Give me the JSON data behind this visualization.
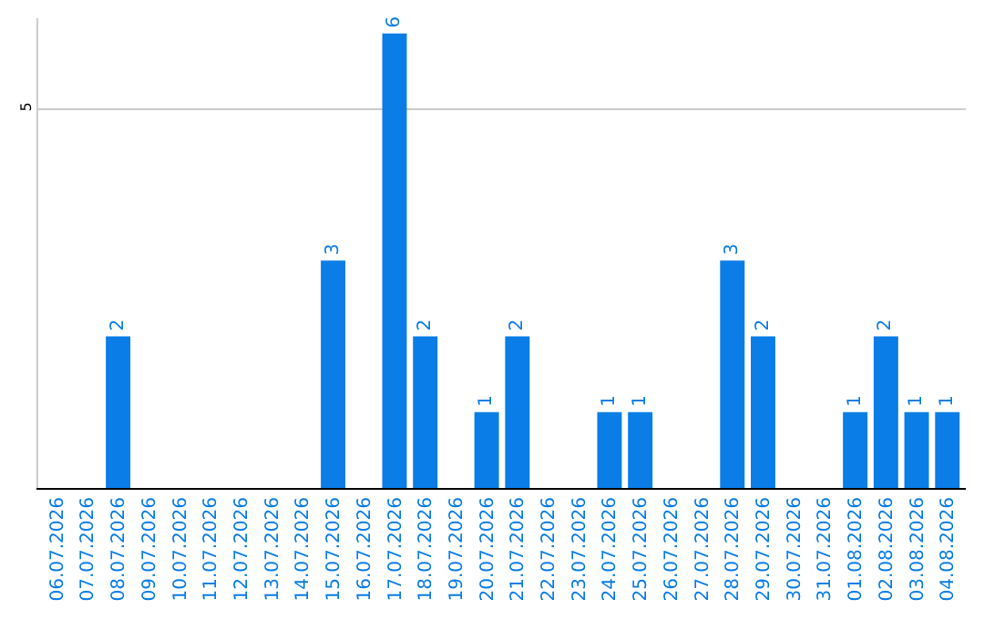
{
  "chart_data": {
    "type": "bar",
    "categories": [
      "06.07.2026",
      "07.07.2026",
      "08.07.2026",
      "09.07.2026",
      "10.07.2026",
      "11.07.2026",
      "12.07.2026",
      "13.07.2026",
      "14.07.2026",
      "15.07.2026",
      "16.07.2026",
      "17.07.2026",
      "18.07.2026",
      "19.07.2026",
      "20.07.2026",
      "21.07.2026",
      "22.07.2026",
      "23.07.2026",
      "24.07.2026",
      "25.07.2026",
      "26.07.2026",
      "27.07.2026",
      "28.07.2026",
      "29.07.2026",
      "30.07.2026",
      "31.07.2026",
      "01.08.2026",
      "02.08.2026",
      "03.08.2026",
      "04.08.2026"
    ],
    "values": [
      0,
      0,
      2,
      0,
      0,
      0,
      0,
      0,
      0,
      3,
      0,
      6,
      2,
      0,
      1,
      2,
      0,
      0,
      1,
      1,
      0,
      0,
      3,
      2,
      0,
      0,
      1,
      2,
      1,
      1
    ],
    "value_labels": [
      null,
      null,
      "2",
      null,
      null,
      null,
      null,
      null,
      null,
      "3",
      null,
      "6",
      "2",
      null,
      "1",
      "2",
      null,
      null,
      "1",
      "1",
      null,
      null,
      "3",
      "2",
      null,
      null,
      "1",
      "2",
      "1",
      "1"
    ],
    "color": "#0a7de6",
    "ylim": [
      0,
      6.2
    ],
    "yticks": [
      5
    ],
    "grid": "y",
    "legend": false
  }
}
